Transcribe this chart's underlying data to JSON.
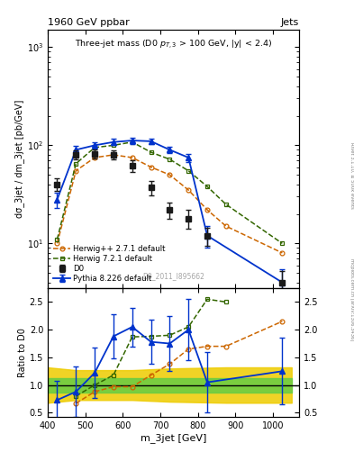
{
  "title_top": "1960 GeV ppbar",
  "title_right": "Jets",
  "watermark": "D0_2011_I895662",
  "ylabel_main": "dσ_3jet / dm_3jet [pb/GeV]",
  "ylabel_ratio": "Ratio to D0",
  "xlabel": "m_3jet [GeV]",
  "right_label_top": "Rivet 3.1.10, ≥ 500k events",
  "right_label_bot": "mcplots.cern.ch [arXiv:1306.3436]",
  "x_d0": [
    425,
    475,
    525,
    575,
    625,
    675,
    725,
    775,
    825,
    1025
  ],
  "y_d0": [
    40,
    80,
    82,
    80,
    62,
    37,
    22,
    18,
    12,
    4.0
  ],
  "yerr_d0_lo": [
    6,
    8,
    8,
    8,
    8,
    6,
    4,
    4,
    2.5,
    1.2
  ],
  "yerr_d0_hi": [
    6,
    8,
    8,
    8,
    8,
    6,
    4,
    4,
    2.5,
    1.2
  ],
  "x_herwigpp": [
    425,
    475,
    525,
    575,
    625,
    675,
    725,
    775,
    825,
    875,
    1025
  ],
  "y_herwigpp": [
    10,
    55,
    75,
    80,
    75,
    60,
    50,
    35,
    22,
    15,
    8
  ],
  "x_herwig721": [
    425,
    475,
    525,
    575,
    625,
    675,
    725,
    775,
    825,
    875,
    1025
  ],
  "y_herwig721": [
    11,
    65,
    95,
    100,
    108,
    85,
    72,
    55,
    38,
    25,
    10
  ],
  "x_pythia": [
    425,
    475,
    525,
    575,
    625,
    675,
    725,
    775,
    825,
    1025
  ],
  "y_pythia": [
    28,
    90,
    100,
    108,
    112,
    110,
    90,
    75,
    12,
    4.0
  ],
  "yerr_pythia_lo": [
    5,
    8,
    8,
    8,
    8,
    8,
    7,
    7,
    3,
    1.5
  ],
  "yerr_pythia_hi": [
    5,
    8,
    8,
    8,
    8,
    8,
    7,
    7,
    3,
    1.5
  ],
  "ratio_x_py": [
    425,
    475,
    525,
    575,
    625,
    675,
    725,
    775,
    825,
    1025
  ],
  "ratio_py": [
    0.73,
    0.88,
    1.22,
    1.88,
    2.05,
    1.78,
    1.75,
    2.0,
    1.05,
    1.25
  ],
  "ratio_py_lo": [
    0.35,
    0.45,
    0.45,
    0.4,
    0.35,
    0.4,
    0.5,
    0.55,
    0.55,
    0.6
  ],
  "ratio_py_hi": [
    0.35,
    0.45,
    0.45,
    0.4,
    0.35,
    0.4,
    0.5,
    0.55,
    0.55,
    0.6
  ],
  "ratio_x_hpp": [
    475,
    525,
    575,
    625,
    675,
    725,
    775,
    825,
    875,
    1025
  ],
  "ratio_hpp": [
    0.67,
    0.88,
    0.97,
    0.97,
    1.18,
    1.38,
    1.65,
    1.7,
    1.7,
    2.15
  ],
  "ratio_x_h72": [
    475,
    525,
    575,
    625,
    675,
    725,
    775,
    825,
    875
  ],
  "ratio_h72": [
    0.8,
    1.0,
    1.18,
    1.87,
    1.88,
    1.9,
    2.05,
    2.55,
    2.5
  ],
  "band_x": [
    400,
    475,
    625,
    725,
    875,
    1050
  ],
  "band_green_lo": [
    0.87,
    0.87,
    0.87,
    0.87,
    0.87,
    0.87
  ],
  "band_green_hi": [
    1.13,
    1.13,
    1.13,
    1.13,
    1.13,
    1.13
  ],
  "band_yellow_lo": [
    0.68,
    0.73,
    0.73,
    0.7,
    0.68,
    0.68
  ],
  "band_yellow_hi": [
    1.32,
    1.27,
    1.27,
    1.3,
    1.32,
    1.32
  ],
  "color_d0": "#1a1a1a",
  "color_herwigpp": "#cc6600",
  "color_herwig721": "#336600",
  "color_pythia": "#0033cc",
  "color_band_green": "#66cc44",
  "color_band_yellow": "#eecc00",
  "xlim": [
    400,
    1070
  ],
  "ylim_main": [
    3.5,
    1500
  ],
  "ylim_ratio": [
    0.42,
    2.75
  ],
  "yticks_ratio": [
    0.5,
    1.0,
    1.5,
    2.0,
    2.5
  ]
}
